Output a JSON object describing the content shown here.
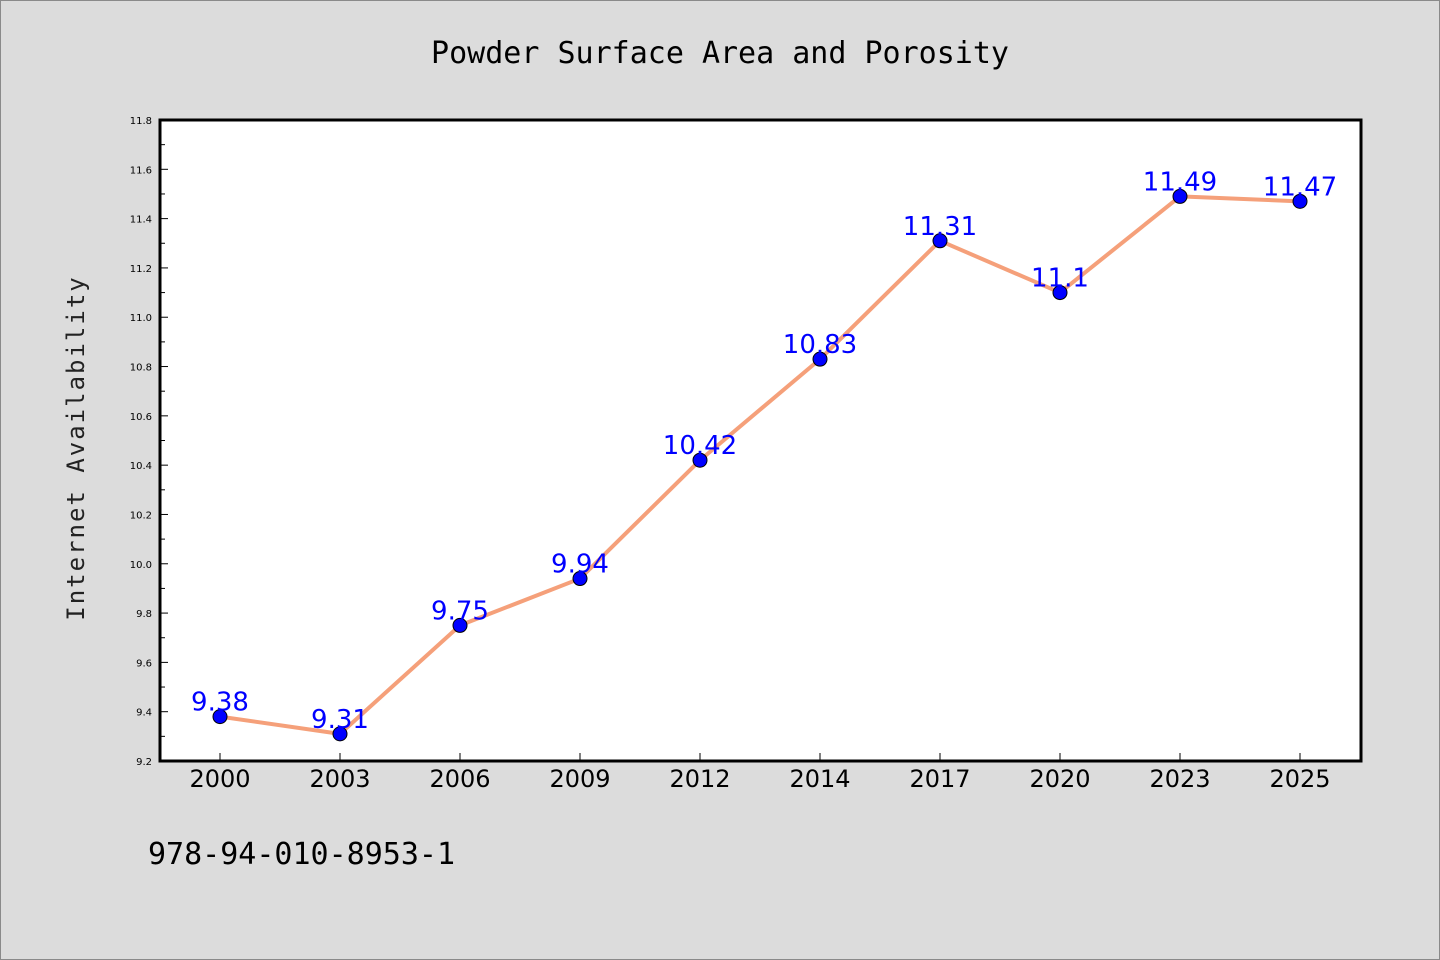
{
  "chart_data": {
    "type": "line",
    "title": "Powder Surface Area and Porosity",
    "xlabel": "",
    "ylabel": "Internet Availability",
    "categories": [
      "2000",
      "2003",
      "2006",
      "2009",
      "2012",
      "2014",
      "2017",
      "2020",
      "2023",
      "2025"
    ],
    "values": [
      9.38,
      9.31,
      9.75,
      9.94,
      10.42,
      10.83,
      11.31,
      11.1,
      11.49,
      11.47
    ],
    "data_labels": [
      "9.38",
      "9.31",
      "9.75",
      "9.94",
      "10.42",
      "10.83",
      "11.31",
      "11.1",
      "11.49",
      "11.47"
    ],
    "ylim": [
      9.2,
      11.8
    ],
    "yticks": [
      "9.2",
      "9.4",
      "9.6",
      "9.8",
      "10.0",
      "10.2",
      "10.4",
      "10.6",
      "10.8",
      "11.0",
      "11.2",
      "11.4",
      "11.6",
      "11.8"
    ],
    "grid": false,
    "legend": "none",
    "colors": {
      "line": "#f5a07a",
      "marker": "#0000ff",
      "data_label": "#0000ff",
      "plot_background": "#ffffff",
      "page_background": "#dcdcdc"
    }
  },
  "footer": {
    "isbn": "978-94-010-8953-1"
  }
}
